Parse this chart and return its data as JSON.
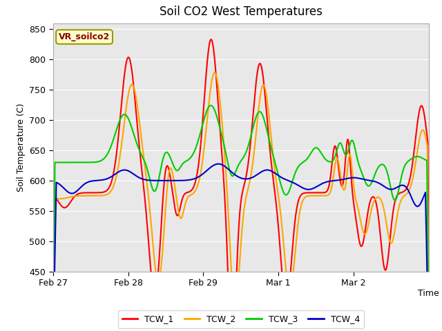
{
  "title": "Soil CO2 West Temperatures",
  "xlabel": "Time",
  "ylabel": "Soil Temperature (C)",
  "ylim": [
    450,
    860
  ],
  "yticks": [
    450,
    500,
    550,
    600,
    650,
    700,
    750,
    800,
    850
  ],
  "background_color": "#e8e8e8",
  "annotation_text": "VR_soilco2",
  "annotation_bg": "#ffffcc",
  "annotation_border": "#999900",
  "annotation_text_color": "#880000",
  "legend_entries": [
    "TCW_1",
    "TCW_2",
    "TCW_3",
    "TCW_4"
  ],
  "colors": {
    "TCW_1": "#ff0000",
    "TCW_2": "#ffa500",
    "TCW_3": "#00cc00",
    "TCW_4": "#0000cd"
  },
  "x_ticks": [
    0,
    1,
    2,
    3,
    4
  ],
  "x_tick_labels": [
    "Feb 27",
    "Feb 28",
    "Feb 29",
    "Mar 1",
    "Mar 2"
  ],
  "x_range": [
    0,
    5.0
  ]
}
